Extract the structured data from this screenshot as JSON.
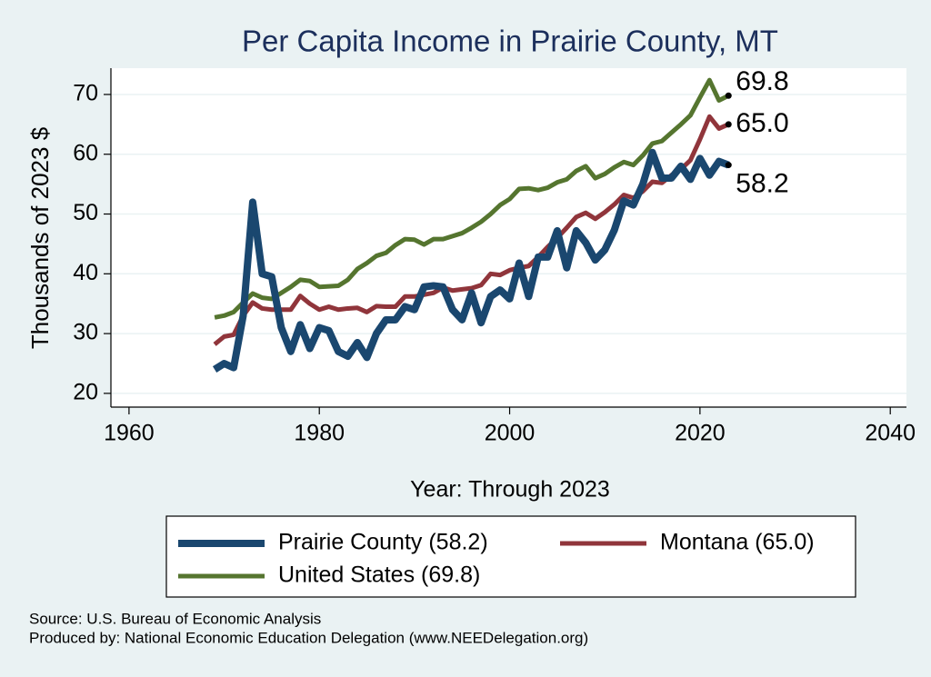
{
  "chart_data": {
    "type": "line",
    "title": "Per Capita Income in Prairie County, MT",
    "xlabel": "Year: Through 2023",
    "ylabel": "Thousands of 2023 $",
    "source": "Source: U.S. Bureau of Economic Analysis",
    "producer": "Produced by: National Economic Education Delegation (www.NEEDelegation.org)",
    "x": [
      1969,
      1970,
      1971,
      1972,
      1973,
      1974,
      1975,
      1976,
      1977,
      1978,
      1979,
      1980,
      1981,
      1982,
      1983,
      1984,
      1985,
      1986,
      1987,
      1988,
      1989,
      1990,
      1991,
      1992,
      1993,
      1994,
      1995,
      1996,
      1997,
      1998,
      1999,
      2000,
      2001,
      2002,
      2003,
      2004,
      2005,
      2006,
      2007,
      2008,
      2009,
      2010,
      2011,
      2012,
      2013,
      2014,
      2015,
      2016,
      2017,
      2018,
      2019,
      2020,
      2021,
      2022,
      2023
    ],
    "series": [
      {
        "name": "Prairie County (58.2)",
        "color": "#1a476f",
        "width": 8,
        "values": [
          24,
          25,
          24.3,
          33,
          52,
          40,
          39.5,
          31,
          27,
          31.5,
          27.5,
          31,
          30.5,
          27,
          26.2,
          28.5,
          26,
          30,
          32.3,
          32.3,
          34.5,
          34,
          37.8,
          38,
          37.8,
          34,
          32.3,
          36.8,
          31.8,
          36.2,
          37.3,
          35.8,
          41.8,
          36.2,
          42.8,
          42.8,
          47.2,
          41,
          47.2,
          45.2,
          42.3,
          44,
          47.3,
          52.2,
          51.5,
          55,
          60.3,
          56,
          56,
          58,
          55.8,
          59.3,
          56.5,
          58.8,
          58.2
        ],
        "value_labels": [
          null,
          null,
          null,
          null,
          null,
          null,
          null,
          null,
          null,
          null,
          null,
          null,
          null,
          null,
          null,
          null,
          null,
          null,
          null,
          null,
          null,
          null,
          null,
          null,
          null,
          null,
          null,
          null,
          null,
          null,
          null,
          null,
          null,
          null,
          null,
          null,
          null,
          null,
          null,
          null,
          null,
          null,
          null,
          null,
          null,
          null,
          null,
          null,
          null,
          null,
          null,
          null,
          null,
          null,
          "58.2"
        ]
      },
      {
        "name": "Montana (65.0)",
        "color": "#90353b",
        "width": 5,
        "values": [
          28.2,
          29.5,
          29.8,
          33,
          35.2,
          34.2,
          34,
          34,
          34,
          36.3,
          35,
          34,
          34.5,
          34,
          34.2,
          34.3,
          33.6,
          34.6,
          34.5,
          34.5,
          36.2,
          36.2,
          36.5,
          36.8,
          37.7,
          37.2,
          37.4,
          37.6,
          38.1,
          40,
          39.8,
          40.6,
          41,
          41.3,
          42.8,
          44.5,
          46,
          47.7,
          49.5,
          50.2,
          49.2,
          50.3,
          51.6,
          53.2,
          52.7,
          53.8,
          55.4,
          55.2,
          56.5,
          57.5,
          59,
          62.5,
          66.3,
          64.3,
          65.0
        ],
        "value_labels": [
          null,
          null,
          null,
          null,
          null,
          null,
          null,
          null,
          null,
          null,
          null,
          null,
          null,
          null,
          null,
          null,
          null,
          null,
          null,
          null,
          null,
          null,
          null,
          null,
          null,
          null,
          null,
          null,
          null,
          null,
          null,
          null,
          null,
          null,
          null,
          null,
          null,
          null,
          null,
          null,
          null,
          null,
          null,
          null,
          null,
          null,
          null,
          null,
          null,
          null,
          null,
          null,
          null,
          null,
          "65.0"
        ]
      },
      {
        "name": "United States (69.8)",
        "color": "#55752f",
        "width": 5,
        "values": [
          32.7,
          33,
          33.6,
          35.2,
          36.7,
          36,
          35.8,
          36.8,
          37.8,
          39,
          38.8,
          37.8,
          37.9,
          38,
          39,
          40.8,
          41.8,
          43,
          43.5,
          44.8,
          45.8,
          45.7,
          44.9,
          45.8,
          45.8,
          46.3,
          46.8,
          47.7,
          48.7,
          50,
          51.5,
          52.5,
          54.2,
          54.3,
          54,
          54.4,
          55.3,
          55.8,
          57.2,
          58,
          56,
          56.7,
          57.8,
          58.7,
          58.2,
          59.8,
          61.8,
          62.2,
          63.6,
          65,
          66.5,
          69.5,
          72.4,
          69,
          69.8
        ],
        "value_labels": [
          null,
          null,
          null,
          null,
          null,
          null,
          null,
          null,
          null,
          null,
          null,
          null,
          null,
          null,
          null,
          null,
          null,
          null,
          null,
          null,
          null,
          null,
          null,
          null,
          null,
          null,
          null,
          null,
          null,
          null,
          null,
          null,
          null,
          null,
          null,
          null,
          null,
          null,
          null,
          null,
          null,
          null,
          null,
          null,
          null,
          null,
          null,
          null,
          null,
          null,
          null,
          null,
          null,
          null,
          "69.8"
        ]
      }
    ],
    "xlim": [
      1958.1,
      2041.7
    ],
    "xticks": [
      1960,
      1980,
      2000,
      2020,
      2040
    ],
    "ylim": [
      17.7,
      74.4
    ],
    "yticks": [
      20,
      30,
      40,
      50,
      60,
      70
    ],
    "grid": true
  }
}
